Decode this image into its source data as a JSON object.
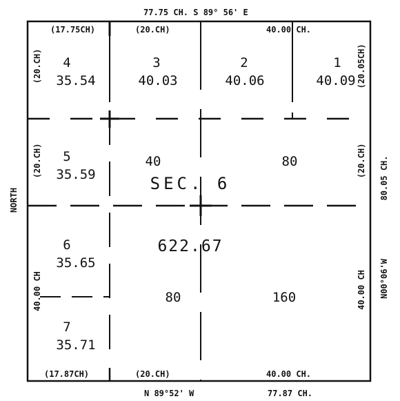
{
  "plat": {
    "top_bearing": "77.75 CH.   S 89° 56' E",
    "bottom_bearing": "N 89°52' W",
    "bottom_total": "77.87 CH.",
    "left_side": "NORTH",
    "right_distance": "80.05 CH.",
    "right_bearing": "N00°06'W",
    "top_segments": [
      "(17.75CH)",
      "(20.CH)",
      "40.00 CH."
    ],
    "bottom_segments": [
      "(17.87CH)",
      "(20.CH)",
      "40.00 CH."
    ],
    "side_labels": {
      "left_1": "(20.CH)",
      "left_2": "(20.CH)",
      "left_3": "40.00 CH",
      "right_1": "(20.05CH)",
      "right_2": "(20.CH)",
      "right_3": "40.00 CH"
    },
    "lots": [
      {
        "number": "4",
        "acres": "35.54"
      },
      {
        "number": "3",
        "acres": "40.03"
      },
      {
        "number": "2",
        "acres": "40.06"
      },
      {
        "number": "1",
        "acres": "40.09"
      },
      {
        "number": "5",
        "acres": "35.59"
      },
      {
        "number": "6",
        "acres": "35.65"
      },
      {
        "number": "7",
        "acres": "35.71"
      }
    ],
    "areas": {
      "nw_40": "40",
      "ne_80": "80",
      "sw_80": "80",
      "se_160": "160"
    },
    "section": "SEC. 6",
    "total_area": "622.67"
  }
}
